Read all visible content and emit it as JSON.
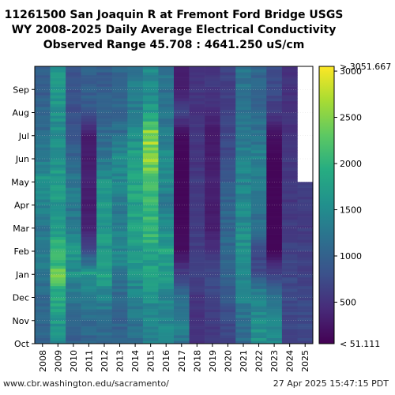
{
  "title_lines": [
    "11261500 San Joaquin R at Fremont Ford Bridge USGS",
    "WY 2008-2025 Daily Average Electrical Conductivity",
    "Observed Range 45.708 : 4641.250 uS/cm"
  ],
  "footer": {
    "left": "www.cbr.washington.edu/sacramento/",
    "right": "27 Apr 2025 15:47:15 PDT"
  },
  "chart_data": {
    "type": "heatmap",
    "x_categories": [
      "2008",
      "2009",
      "2010",
      "2011",
      "2012",
      "2013",
      "2014",
      "2015",
      "2016",
      "2017",
      "2018",
      "2019",
      "2020",
      "2021",
      "2022",
      "2023",
      "2024",
      "2025"
    ],
    "y_months": [
      "Oct",
      "Nov",
      "Dec",
      "Jan",
      "Feb",
      "Mar",
      "Apr",
      "May",
      "Jun",
      "Jul",
      "Aug",
      "Sep"
    ],
    "colorbar": {
      "min": 51.111,
      "max": 3051.667,
      "ticks": [
        500,
        1000,
        1500,
        2000,
        2500,
        3000
      ],
      "min_label": "< 51.111",
      "max_label": "> 3051.667",
      "colormap": "viridis"
    },
    "approx_level_by_year_and_month_uScm": {
      "2008": [
        1000,
        1050,
        1100,
        1250,
        1350,
        1200,
        1450,
        1600,
        1350,
        1150,
        1050,
        950
      ],
      "2009": [
        1500,
        1700,
        1900,
        2300,
        2000,
        1700,
        1650,
        1700,
        1650,
        1500,
        1550,
        1650
      ],
      "2010": [
        1000,
        1050,
        1200,
        1550,
        1600,
        1250,
        1300,
        1250,
        1000,
        900,
        800,
        850
      ],
      "2011": [
        1050,
        1100,
        1300,
        1700,
        650,
        350,
        300,
        350,
        300,
        300,
        900,
        1000
      ],
      "2012": [
        1100,
        1200,
        1400,
        1800,
        1700,
        1650,
        1600,
        1550,
        1250,
        1100,
        1000,
        950
      ],
      "2013": [
        1000,
        1050,
        1100,
        1300,
        1450,
        1350,
        1300,
        1450,
        1500,
        1150,
        1050,
        1050
      ],
      "2014": [
        1150,
        1250,
        1350,
        1600,
        1650,
        1750,
        1750,
        1900,
        1800,
        1500,
        1300,
        1300
      ],
      "2015": [
        1350,
        1450,
        1550,
        1750,
        1900,
        2100,
        2100,
        2200,
        2500,
        2600,
        1700,
        1500
      ],
      "2016": [
        1400,
        1500,
        1500,
        1700,
        1800,
        1500,
        1300,
        1450,
        1550,
        1300,
        1200,
        1200
      ],
      "2017": [
        1250,
        1400,
        1150,
        600,
        150,
        120,
        100,
        100,
        100,
        150,
        700,
        300
      ],
      "2018": [
        500,
        500,
        550,
        650,
        600,
        600,
        550,
        600,
        500,
        550,
        500,
        550
      ],
      "2019": [
        550,
        600,
        700,
        700,
        500,
        300,
        300,
        350,
        300,
        250,
        450,
        550
      ],
      "2020": [
        700,
        750,
        900,
        1050,
        1100,
        1050,
        1050,
        900,
        750,
        700,
        650,
        650
      ],
      "2021": [
        1150,
        1200,
        1400,
        1550,
        1600,
        1500,
        1450,
        1400,
        1350,
        1300,
        1250,
        1200
      ],
      "2022": [
        1600,
        1500,
        1450,
        750,
        700,
        1200,
        1200,
        1300,
        1350,
        1200,
        1100,
        1050
      ],
      "2023": [
        1550,
        1350,
        1200,
        600,
        100,
        100,
        100,
        100,
        100,
        200,
        600,
        750
      ],
      "2024": [
        700,
        700,
        750,
        700,
        650,
        600,
        550,
        550,
        550,
        500,
        500,
        500
      ],
      "2025": [
        700,
        750,
        700,
        650,
        650,
        600,
        600,
        null,
        null,
        null,
        null,
        null
      ]
    },
    "xlabel": "",
    "ylabel": ""
  }
}
